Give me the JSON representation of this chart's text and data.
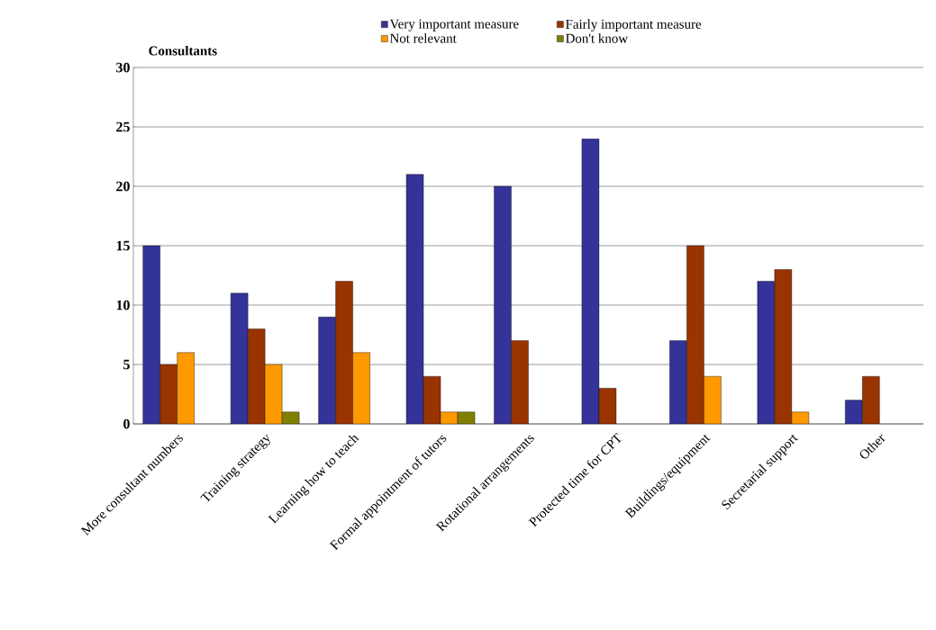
{
  "chart_data": {
    "type": "bar",
    "title": "Consultants",
    "categories": [
      "More consultant numbers",
      "Training strategy",
      "Learning how to teach",
      "Formal appointment of tutors",
      "Rotational arrangements",
      "Protected time for CPT",
      "Buildings/equipment",
      "Secretarial support",
      "Other"
    ],
    "series": [
      {
        "name": "Very important measure",
        "color": "#333399",
        "values": [
          15,
          11,
          9,
          21,
          20,
          24,
          7,
          12,
          2
        ]
      },
      {
        "name": "Fairly important measure",
        "color": "#993300",
        "values": [
          5,
          8,
          12,
          4,
          7,
          3,
          15,
          13,
          4
        ]
      },
      {
        "name": "Not relevant",
        "color": "#ff9900",
        "values": [
          6,
          5,
          6,
          1,
          null,
          null,
          4,
          1,
          null
        ]
      },
      {
        "name": "Don't know",
        "color": "#808000",
        "values": [
          null,
          1,
          null,
          1,
          null,
          null,
          null,
          null,
          null
        ]
      }
    ],
    "ylim": [
      0,
      30
    ],
    "yticks": [
      0,
      5,
      10,
      15,
      20,
      25,
      30
    ],
    "grid": "y",
    "legend": "top"
  }
}
